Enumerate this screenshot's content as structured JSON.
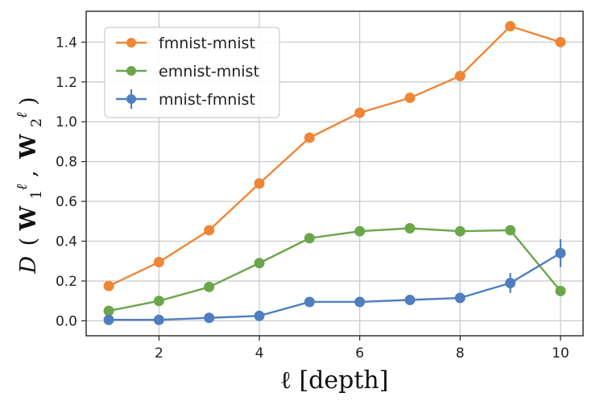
{
  "chart_data": {
    "type": "line",
    "title": "",
    "xlabel": "ℓ   [depth]",
    "ylabel": "D (W1ℓ, W2ℓ)",
    "ylabel_parts": {
      "lead": "D",
      "open": "(",
      "w": "W",
      "sub1": "1",
      "sub2": "2",
      "sup": "ℓ",
      "comma": ",",
      "close": ")"
    },
    "xlim": [
      0.55,
      10.45
    ],
    "ylim": [
      -0.075,
      1.555
    ],
    "xticks": [
      2,
      4,
      6,
      8,
      10
    ],
    "yticks": [
      0.0,
      0.2,
      0.4,
      0.6,
      0.8,
      1.0,
      1.2,
      1.4
    ],
    "grid": true,
    "legend_position": "top-left",
    "x": [
      1,
      2,
      3,
      4,
      5,
      6,
      7,
      8,
      9,
      10
    ],
    "series": [
      {
        "name": "fmnist-mnist",
        "color": "#ef8636",
        "values": [
          0.175,
          0.295,
          0.455,
          0.69,
          0.92,
          1.045,
          1.12,
          1.23,
          1.48,
          1.4
        ]
      },
      {
        "name": "emnist-mnist",
        "color": "#6ba64b",
        "values": [
          0.05,
          0.1,
          0.17,
          0.29,
          0.415,
          0.45,
          0.465,
          0.45,
          0.455,
          0.15
        ]
      },
      {
        "name": "mnist-fmnist",
        "color": "#4f7fbf",
        "values": [
          0.005,
          0.005,
          0.015,
          0.025,
          0.095,
          0.095,
          0.105,
          0.115,
          0.19,
          0.34
        ],
        "errors": [
          0.01,
          0.01,
          0.01,
          0.01,
          0.01,
          0.01,
          0.01,
          0.015,
          0.05,
          0.07
        ]
      }
    ]
  }
}
